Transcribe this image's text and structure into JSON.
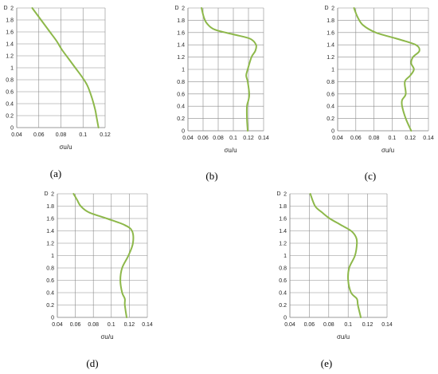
{
  "colors": {
    "line": "#8db84a",
    "grid": "#8c8c8c"
  },
  "chart_data": [
    {
      "type": "line",
      "panel_label": "(a)",
      "ylabel": "D",
      "xlabel": "σu/u",
      "xlim": [
        0.04,
        0.12
      ],
      "xticks": [
        "0.04",
        "0.06",
        "0.08",
        "0.1",
        "0.12"
      ],
      "ylim": [
        0,
        2
      ],
      "yticks": [
        "0",
        "0.2",
        "0.4",
        "0.6",
        "0.8",
        "1",
        "1.2",
        "1.4",
        "1.6",
        "1.8",
        "2"
      ],
      "grid": true,
      "series": [
        {
          "x": [
            0.114,
            0.113,
            0.112,
            0.111,
            0.108,
            0.104,
            0.099,
            0.093,
            0.087,
            0.081,
            0.076,
            0.07,
            0.064,
            0.058,
            0.054
          ],
          "y": [
            0,
            0.1,
            0.2,
            0.3,
            0.5,
            0.7,
            0.85,
            1.0,
            1.15,
            1.3,
            1.45,
            1.6,
            1.75,
            1.9,
            2.0
          ]
        }
      ]
    },
    {
      "type": "line",
      "panel_label": "(b)",
      "ylabel": "D",
      "xlabel": "σu/u",
      "xlim": [
        0.04,
        0.14
      ],
      "xticks": [
        "0.04",
        "0.06",
        "0.08",
        "0.1",
        "0.12",
        "0.14"
      ],
      "ylim": [
        0,
        2
      ],
      "yticks": [
        "0",
        "0.2",
        "0.4",
        "0.6",
        "0.8",
        "1",
        "1.2",
        "1.4",
        "1.6",
        "1.8",
        "2"
      ],
      "grid": true,
      "series": [
        {
          "x": [
            0.119,
            0.118,
            0.118,
            0.12,
            0.121,
            0.119,
            0.117,
            0.119,
            0.124,
            0.129,
            0.13,
            0.122,
            0.1,
            0.075,
            0.065,
            0.061,
            0.058
          ],
          "y": [
            0,
            0.2,
            0.4,
            0.5,
            0.6,
            0.8,
            0.9,
            1.0,
            1.2,
            1.3,
            1.4,
            1.5,
            1.57,
            1.65,
            1.75,
            1.85,
            2.0
          ]
        }
      ]
    },
    {
      "type": "line",
      "panel_label": "(c)",
      "ylabel": "D",
      "xlabel": "σu/u",
      "xlim": [
        0.04,
        0.14
      ],
      "xticks": [
        "0.04",
        "0.06",
        "0.08",
        "0.1",
        "0.12",
        "0.14"
      ],
      "ylim": [
        0,
        2
      ],
      "yticks": [
        "0",
        "0.2",
        "0.4",
        "0.6",
        "0.8",
        "1",
        "1.2",
        "1.4",
        "1.6",
        "1.8",
        "2"
      ],
      "grid": true,
      "series": [
        {
          "x": [
            0.121,
            0.115,
            0.111,
            0.111,
            0.115,
            0.114,
            0.12,
            0.124,
            0.121,
            0.123,
            0.13,
            0.126,
            0.105,
            0.082,
            0.068,
            0.062,
            0.058
          ],
          "y": [
            0,
            0.2,
            0.4,
            0.5,
            0.6,
            0.8,
            0.9,
            1.0,
            1.1,
            1.2,
            1.3,
            1.4,
            1.5,
            1.6,
            1.72,
            1.85,
            2.0
          ]
        }
      ]
    },
    {
      "type": "line",
      "panel_label": "(d)",
      "ylabel": "D",
      "xlabel": "σu/u",
      "xlim": [
        0.04,
        0.14
      ],
      "xticks": [
        "0.04",
        "0.06",
        "0.08",
        "0.1",
        "0.12",
        "0.14"
      ],
      "ylim": [
        0,
        2
      ],
      "yticks": [
        "0",
        "0.2",
        "0.4",
        "0.6",
        "0.8",
        "1",
        "1.2",
        "1.4",
        "1.6",
        "1.8",
        "2"
      ],
      "grid": true,
      "series": [
        {
          "x": [
            0.117,
            0.115,
            0.115,
            0.112,
            0.11,
            0.112,
            0.119,
            0.124,
            0.123,
            0.114,
            0.095,
            0.075,
            0.066,
            0.062,
            0.058
          ],
          "y": [
            0,
            0.2,
            0.3,
            0.4,
            0.6,
            0.8,
            1.0,
            1.2,
            1.4,
            1.5,
            1.6,
            1.7,
            1.8,
            1.9,
            2.0
          ]
        }
      ]
    },
    {
      "type": "line",
      "panel_label": "(e)",
      "ylabel": "D",
      "xlabel": "σu/u",
      "xlim": [
        0.04,
        0.14
      ],
      "xticks": [
        "0.04",
        "0.06",
        "0.08",
        "0.1",
        "0.12",
        "0.14"
      ],
      "ylim": [
        0,
        2
      ],
      "yticks": [
        "0",
        "0.2",
        "0.4",
        "0.6",
        "0.8",
        "1",
        "1.2",
        "1.4",
        "1.6",
        "1.8",
        "2"
      ],
      "grid": true,
      "series": [
        {
          "x": [
            0.113,
            0.11,
            0.109,
            0.103,
            0.1,
            0.101,
            0.107,
            0.109,
            0.108,
            0.103,
            0.092,
            0.081,
            0.073,
            0.066,
            0.061
          ],
          "y": [
            0,
            0.2,
            0.3,
            0.4,
            0.6,
            0.8,
            1.0,
            1.2,
            1.3,
            1.4,
            1.5,
            1.6,
            1.7,
            1.8,
            2.0
          ]
        }
      ]
    }
  ]
}
